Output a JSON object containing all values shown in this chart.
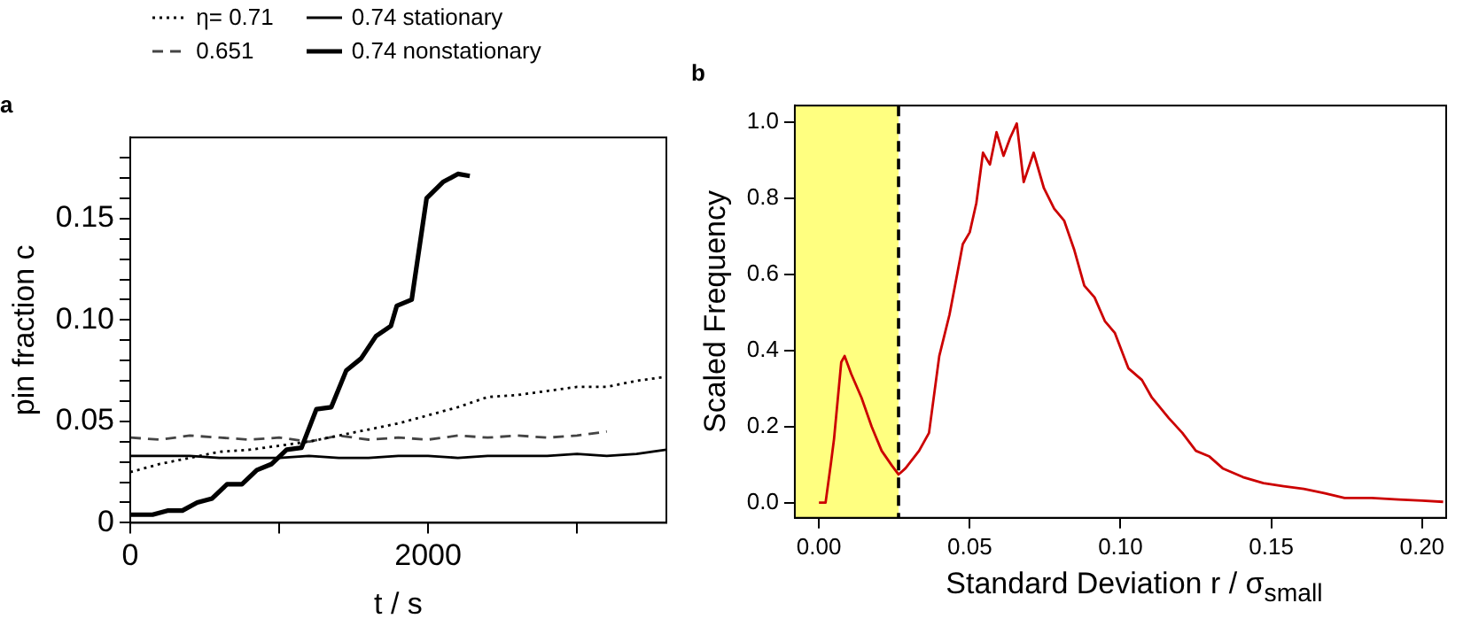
{
  "chart_data": [
    {
      "type": "line",
      "title": "a",
      "xlabel": "t / s",
      "ylabel": "pin fraction c",
      "xlim": [
        0,
        3600
      ],
      "ylim": [
        0,
        0.19
      ],
      "xticks": [
        0,
        {
          "value": 1000,
          "label": null
        },
        2000,
        {
          "value": 3000,
          "label": null
        }
      ],
      "yticks": [
        0,
        {
          "value": 0.01,
          "label": null
        },
        {
          "value": 0.02,
          "label": null
        },
        {
          "value": 0.03,
          "label": null
        },
        {
          "value": 0.04,
          "label": null
        },
        0.05,
        {
          "value": 0.06,
          "label": null
        },
        {
          "value": 0.07,
          "label": null
        },
        {
          "value": 0.08,
          "label": null
        },
        {
          "value": 0.09,
          "label": null
        },
        {
          "value": 0.1,
          "label": "0.10"
        },
        {
          "value": 0.11,
          "label": null
        },
        {
          "value": 0.12,
          "label": null
        },
        {
          "value": 0.13,
          "label": null
        },
        {
          "value": 0.14,
          "label": null
        },
        0.15,
        {
          "value": 0.16,
          "label": null
        },
        {
          "value": 0.17,
          "label": null
        },
        {
          "value": 0.18,
          "label": null
        }
      ],
      "grid": false,
      "legend": "top",
      "marker": "none",
      "series": [
        {
          "name": "η= 0.71",
          "color": "#000000",
          "line_style": "dotted",
          "x": [
            0,
            200,
            400,
            600,
            800,
            1000,
            1200,
            1400,
            1600,
            1800,
            2000,
            2200,
            2400,
            2600,
            2800,
            3000,
            3200,
            3400,
            3600
          ],
          "values": [
            0.025,
            0.029,
            0.032,
            0.035,
            0.036,
            0.038,
            0.04,
            0.043,
            0.046,
            0.049,
            0.053,
            0.057,
            0.062,
            0.063,
            0.065,
            0.067,
            0.067,
            0.07,
            0.072
          ]
        },
        {
          "name": "0.651",
          "color": "#444444",
          "line_style": "dashed",
          "x": [
            0,
            200,
            400,
            600,
            800,
            1000,
            1200,
            1400,
            1600,
            1800,
            2000,
            2200,
            2400,
            2600,
            2800,
            3000,
            3200
          ],
          "values": [
            0.042,
            0.041,
            0.043,
            0.042,
            0.041,
            0.042,
            0.04,
            0.043,
            0.041,
            0.042,
            0.041,
            0.043,
            0.042,
            0.043,
            0.042,
            0.043,
            0.045
          ]
        },
        {
          "name": "0.74 stationary",
          "color": "#000000",
          "line_style": "solid",
          "x": [
            0,
            200,
            400,
            600,
            800,
            1000,
            1200,
            1400,
            1600,
            1800,
            2000,
            2200,
            2400,
            2600,
            2800,
            3000,
            3200,
            3400,
            3600
          ],
          "values": [
            0.033,
            0.033,
            0.033,
            0.032,
            0.032,
            0.032,
            0.033,
            0.032,
            0.032,
            0.033,
            0.033,
            0.032,
            0.033,
            0.033,
            0.033,
            0.034,
            0.033,
            0.034,
            0.036
          ]
        },
        {
          "name": "0.74 nonstationary",
          "color": "#000000",
          "line_style": "solid",
          "x": [
            0,
            150,
            250,
            350,
            450,
            550,
            650,
            750,
            850,
            950,
            1050,
            1150,
            1250,
            1350,
            1450,
            1550,
            1650,
            1750,
            1790,
            1890,
            1990,
            2100,
            2200,
            2280
          ],
          "values": [
            0.004,
            0.004,
            0.006,
            0.006,
            0.01,
            0.012,
            0.019,
            0.019,
            0.026,
            0.029,
            0.036,
            0.037,
            0.056,
            0.057,
            0.075,
            0.081,
            0.092,
            0.097,
            0.107,
            0.11,
            0.16,
            0.168,
            0.172,
            0.171
          ]
        }
      ]
    },
    {
      "type": "line",
      "title": "b",
      "xlabel": "Standard Deviation r / σ$_{small}$",
      "ylabel": "Scaled Frequency",
      "xlim": [
        -0.008,
        0.208
      ],
      "ylim": [
        -0.04,
        1.043
      ],
      "xticks": [
        {
          "value": 0,
          "label": "0.00"
        },
        0.05,
        {
          "value": 0.1,
          "label": "0.10"
        },
        0.15,
        {
          "value": 0.2,
          "label": "0.20"
        }
      ],
      "yticks": [
        {
          "value": 0,
          "label": "0.0"
        },
        0.2,
        0.4,
        0.6,
        0.8,
        {
          "value": 1,
          "label": "1.0"
        }
      ],
      "grid": false,
      "marker": "none",
      "bands": [
        {
          "axis": "x",
          "from": -0.008,
          "to": 0.0264,
          "color": "#ffff80"
        }
      ],
      "ref_lines": [
        {
          "axis": "x",
          "value": 0.0264,
          "color": "#000000",
          "line_style": "dashed"
        }
      ],
      "series": [
        {
          "color": "#cc0000",
          "x": [
            0,
            0.0022,
            0.004,
            0.005,
            0.0074,
            0.0085,
            0.0107,
            0.0141,
            0.0175,
            0.0208,
            0.0242,
            0.0264,
            0.0287,
            0.0332,
            0.0365,
            0.0399,
            0.0433,
            0.0455,
            0.0477,
            0.05,
            0.0522,
            0.0544,
            0.0567,
            0.0589,
            0.0612,
            0.0634,
            0.0656,
            0.0679,
            0.0712,
            0.0746,
            0.078,
            0.0813,
            0.0847,
            0.088,
            0.0914,
            0.0948,
            0.0981,
            0.1026,
            0.1071,
            0.1104,
            0.116,
            0.1205,
            0.125,
            0.1295,
            0.1339,
            0.1406,
            0.1474,
            0.1541,
            0.1608,
            0.1675,
            0.1743,
            0.1833,
            0.1922,
            0.2,
            0.207
          ],
          "values": [
            0,
            0,
            0.105,
            0.167,
            0.369,
            0.385,
            0.338,
            0.276,
            0.199,
            0.136,
            0.097,
            0.074,
            0.09,
            0.136,
            0.183,
            0.385,
            0.494,
            0.586,
            0.679,
            0.71,
            0.787,
            0.919,
            0.888,
            0.973,
            0.911,
            0.958,
            0.996,
            0.842,
            0.919,
            0.826,
            0.772,
            0.741,
            0.663,
            0.57,
            0.539,
            0.477,
            0.446,
            0.353,
            0.322,
            0.276,
            0.222,
            0.183,
            0.136,
            0.121,
            0.09,
            0.067,
            0.051,
            0.043,
            0.036,
            0.025,
            0.012,
            0.012,
            0.008,
            0.005,
            0.002
          ]
        }
      ]
    }
  ]
}
